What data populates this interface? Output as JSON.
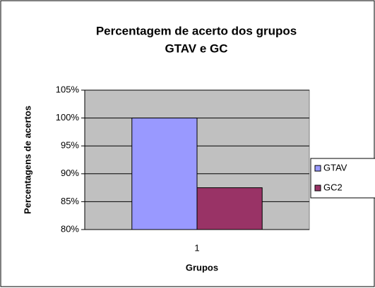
{
  "chart_data": {
    "type": "bar",
    "title": [
      "Percentagem de acerto dos grupos",
      "GTAV e GC"
    ],
    "x_label": "Grupos",
    "y_label": "Percentagens de acertos",
    "categories": [
      "1"
    ],
    "series": [
      {
        "name": "GTAV",
        "color": "#9999ff",
        "values": [
          100
        ]
      },
      {
        "name": "GC2",
        "color": "#993366",
        "values": [
          87.5
        ]
      }
    ],
    "ylim": [
      80,
      105
    ],
    "yticks": [
      {
        "value": 80,
        "label": "80%"
      },
      {
        "value": 85,
        "label": "85%"
      },
      {
        "value": 90,
        "label": "90%"
      },
      {
        "value": 95,
        "label": "95%"
      },
      {
        "value": 100,
        "label": "100%"
      },
      {
        "value": 105,
        "label": "105%"
      }
    ],
    "grid": true,
    "legend": "right"
  }
}
